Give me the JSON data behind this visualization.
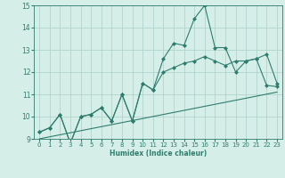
{
  "xlabel": "Humidex (Indice chaleur)",
  "x_values": [
    0,
    1,
    2,
    3,
    4,
    5,
    6,
    7,
    8,
    9,
    10,
    11,
    12,
    13,
    14,
    15,
    16,
    17,
    18,
    19,
    20,
    21,
    22,
    23
  ],
  "line1_y": [
    9.3,
    9.5,
    10.1,
    8.8,
    10.0,
    10.1,
    10.4,
    9.8,
    11.0,
    9.8,
    11.5,
    11.2,
    12.6,
    13.3,
    13.2,
    14.4,
    15.0,
    13.1,
    13.1,
    12.0,
    12.5,
    12.6,
    12.8,
    11.5
  ],
  "line2_y": [
    9.3,
    9.5,
    10.1,
    8.8,
    10.0,
    10.1,
    10.4,
    9.8,
    11.0,
    9.8,
    11.5,
    11.2,
    12.0,
    12.2,
    12.4,
    12.5,
    12.7,
    12.5,
    12.3,
    12.5,
    12.5,
    12.6,
    11.4,
    11.35
  ],
  "line3_x": [
    0,
    23
  ],
  "line3_y": [
    9.0,
    11.1
  ],
  "line_color": "#2E7D6E",
  "bg_color": "#D6EEE8",
  "grid_color": "#AACFC7",
  "ylim": [
    9,
    15
  ],
  "xlim": [
    -0.5,
    23.5
  ],
  "yticks": [
    9,
    10,
    11,
    12,
    13,
    14,
    15
  ],
  "xticks": [
    0,
    1,
    2,
    3,
    4,
    5,
    6,
    7,
    8,
    9,
    10,
    11,
    12,
    13,
    14,
    15,
    16,
    17,
    18,
    19,
    20,
    21,
    22,
    23
  ],
  "marker": "D",
  "marker_size": 2.0,
  "linewidth": 0.8,
  "tick_fontsize": 5.0,
  "xlabel_fontsize": 5.5
}
